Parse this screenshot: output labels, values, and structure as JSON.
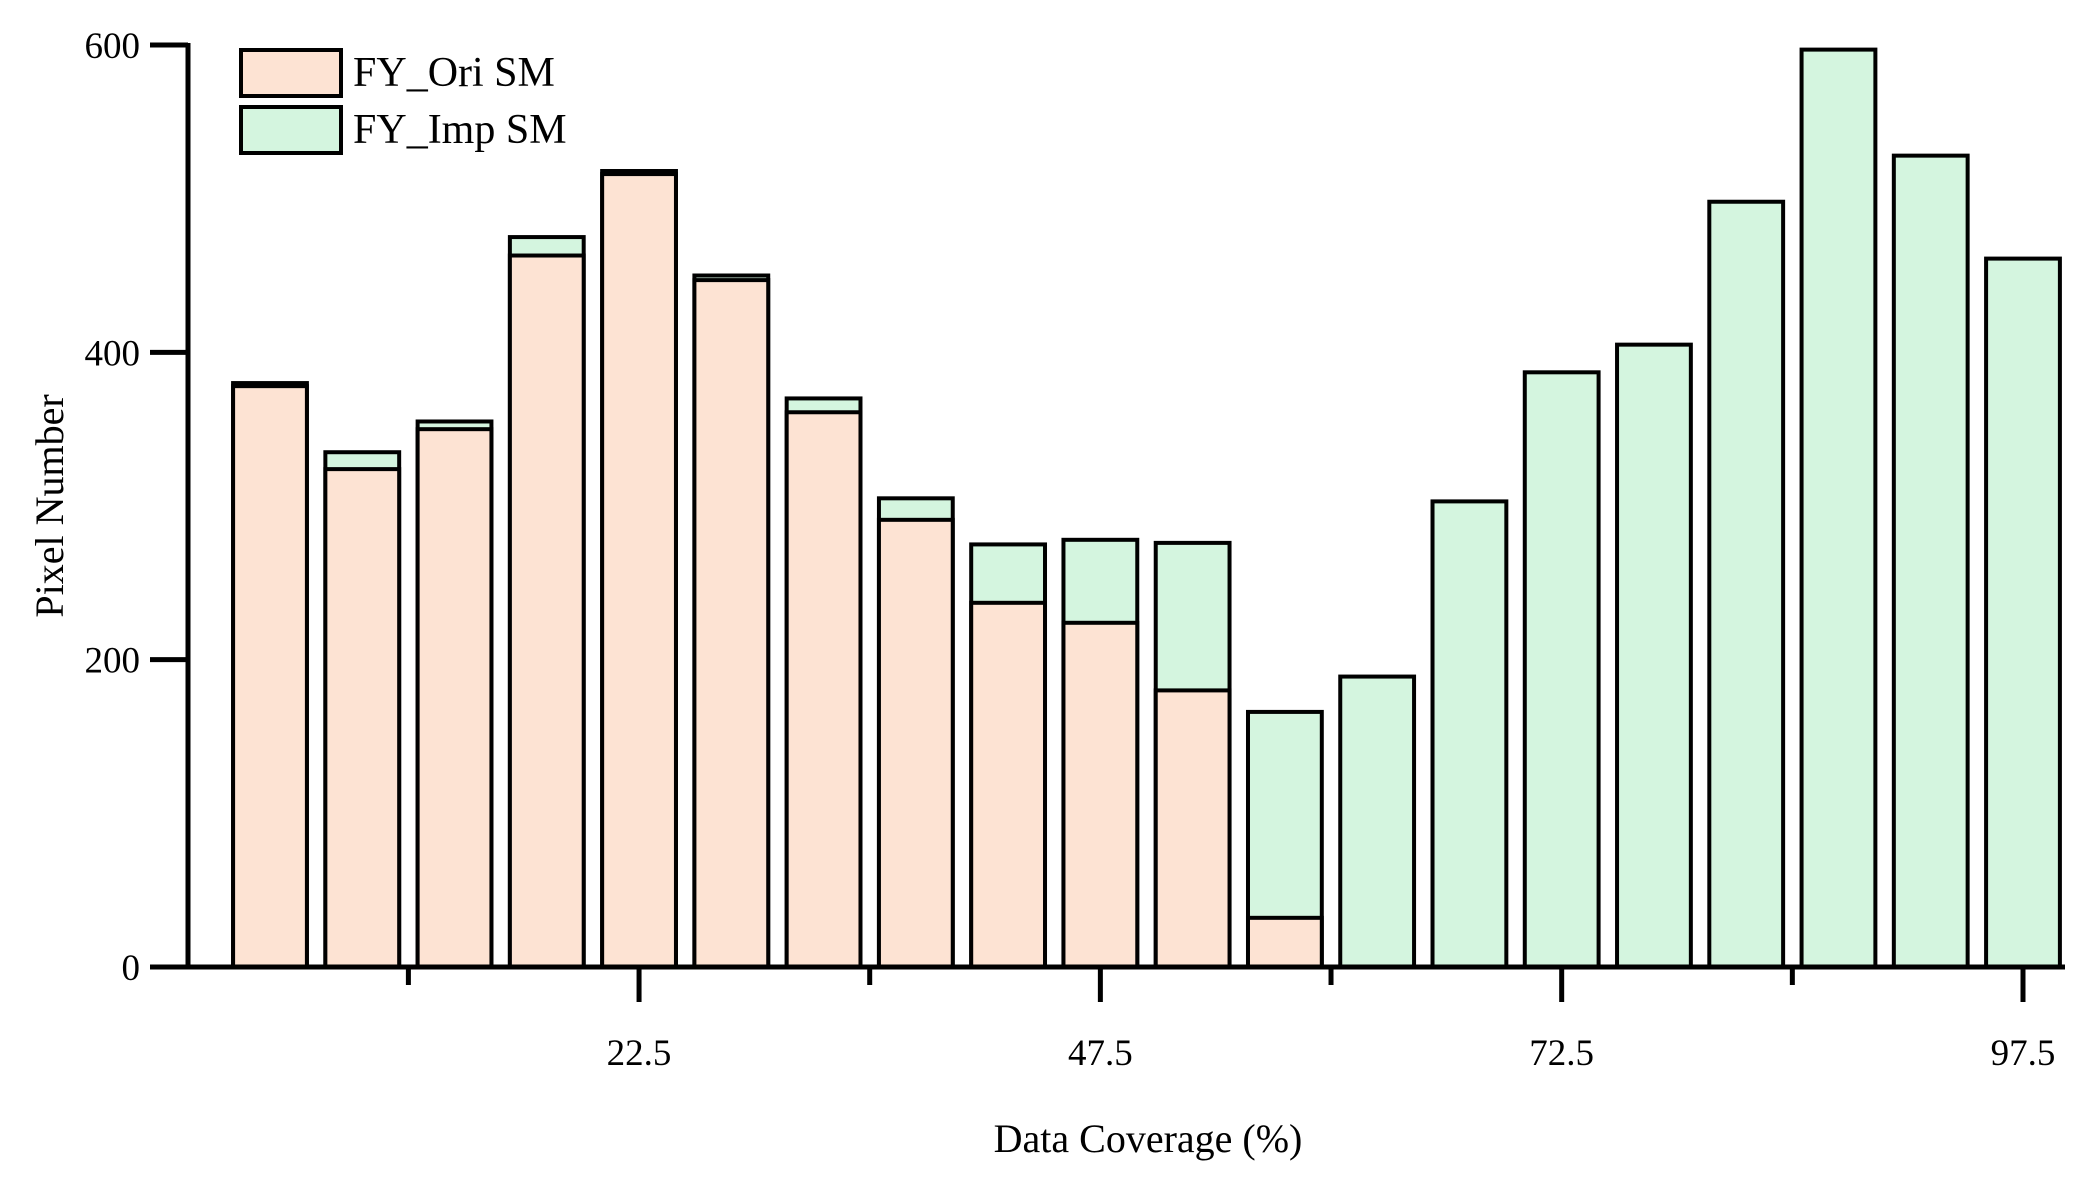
{
  "chart_data": {
    "type": "bar",
    "stacking": "overlay",
    "title": "",
    "xlabel": "Data Coverage (%)",
    "ylabel": "Pixel Number",
    "ylim": [
      0,
      600
    ],
    "yticks": [
      "0",
      "200",
      "400",
      "600"
    ],
    "x_major_ticks": [
      "22.5",
      "47.5",
      "72.5",
      "97.5"
    ],
    "categories": [
      2.5,
      7.5,
      12.5,
      17.5,
      22.5,
      27.5,
      32.5,
      37.5,
      42.5,
      47.5,
      52.5,
      57.5,
      62.5,
      67.5,
      72.5,
      77.5,
      82.5,
      87.5,
      92.5,
      97.5
    ],
    "legend_position": "top-left",
    "series": [
      {
        "name": "FY_Imp SM",
        "color": "#d4f5df",
        "values": [
          380,
          335,
          355,
          475,
          518,
          450,
          370,
          305,
          275,
          278,
          276,
          166,
          189,
          303,
          387,
          405,
          498,
          597,
          528,
          461
        ]
      },
      {
        "name": "FY_Ori SM",
        "color": "#fde3d3",
        "values": [
          378,
          324,
          350,
          463,
          516,
          447,
          361,
          291,
          237,
          224,
          180,
          32,
          0,
          0,
          0,
          0,
          0,
          0,
          0,
          0
        ]
      }
    ],
    "legend": [
      {
        "name": "FY_Ori SM",
        "color": "#fde3d3"
      },
      {
        "name": "FY_Imp SM",
        "color": "#d4f5df"
      }
    ]
  }
}
